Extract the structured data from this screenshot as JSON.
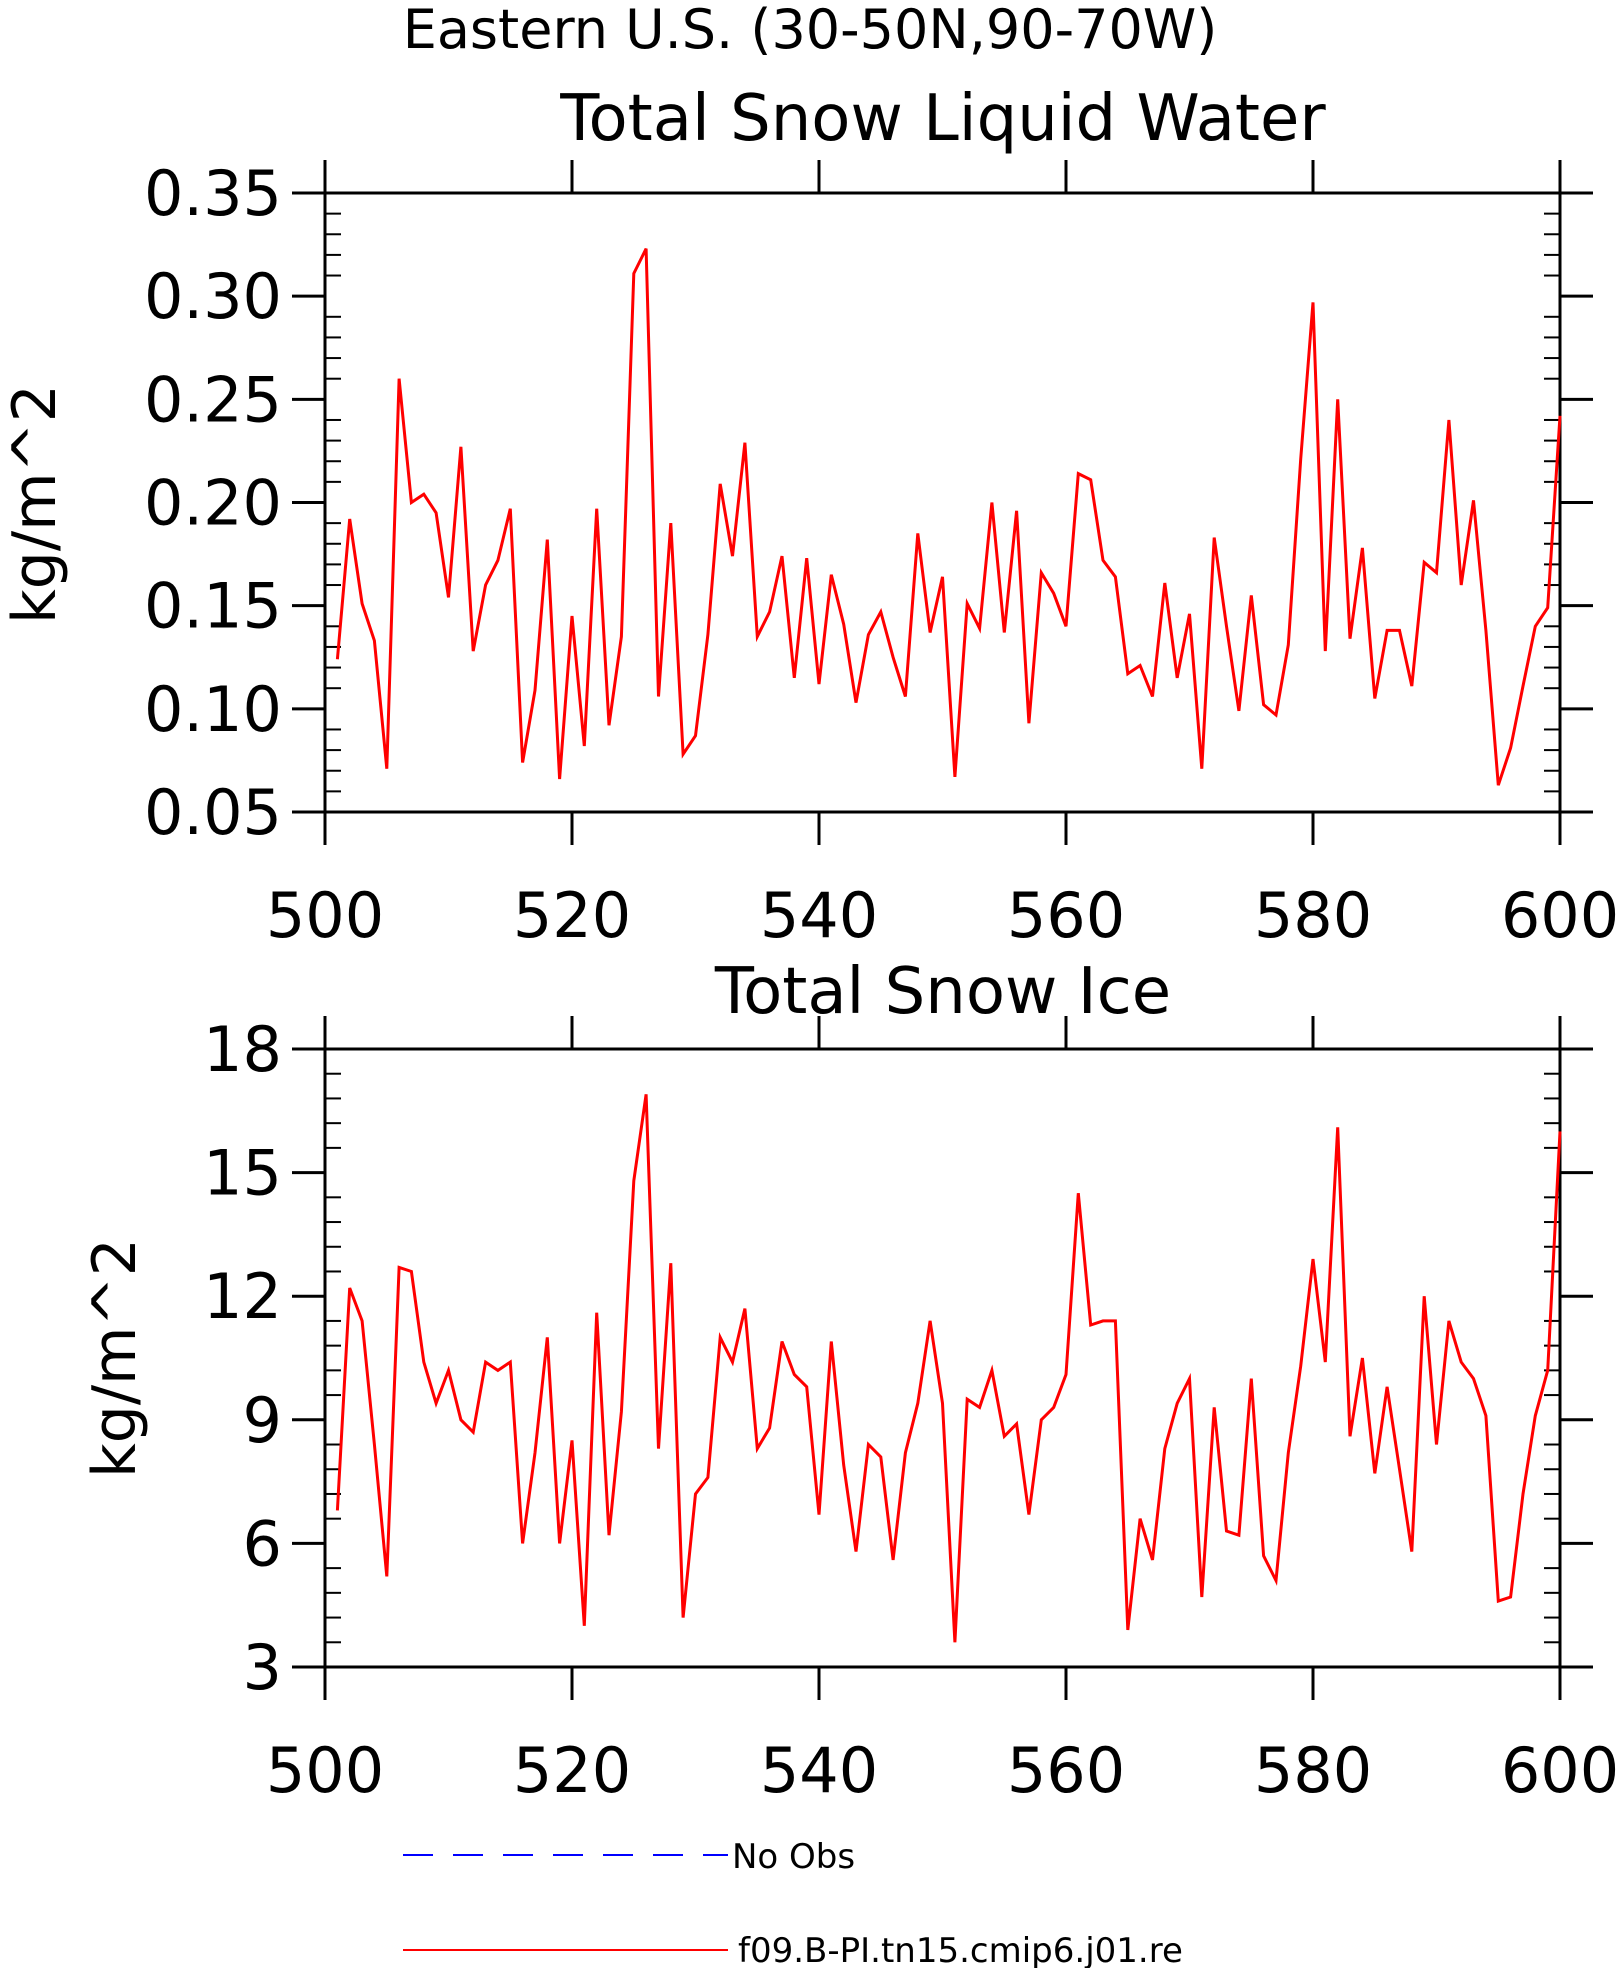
{
  "figure_title": "Eastern U.S. (30-50N,90-70W)",
  "legend": [
    {
      "label": "No Obs",
      "color": "#0000ff",
      "style": "dashed"
    },
    {
      "label": "f09.B-PI.tn15.cmip6.j01.re",
      "color": "#ff0000",
      "style": "solid"
    }
  ],
  "chart_data": [
    {
      "type": "line",
      "title": "Total Snow Liquid Water",
      "xlabel": "",
      "ylabel": "kg/m^2",
      "xlim": [
        500,
        600
      ],
      "ylim": [
        0.05,
        0.35
      ],
      "xticks": [
        500,
        520,
        540,
        560,
        580,
        600
      ],
      "xtick_labels": [
        "500",
        "520",
        "540",
        "560",
        "580",
        "600"
      ],
      "yticks": [
        0.05,
        0.1,
        0.15,
        0.2,
        0.25,
        0.3,
        0.35
      ],
      "ytick_labels": [
        "0.05",
        "0.10",
        "0.15",
        "0.20",
        "0.25",
        "0.30",
        "0.35"
      ],
      "grid": false,
      "series": [
        {
          "name": "f09.B-PI.tn15.cmip6.j01.re",
          "color": "#ff0000",
          "x": [
            501,
            502,
            503,
            504,
            505,
            506,
            507,
            508,
            509,
            510,
            511,
            512,
            513,
            514,
            515,
            516,
            517,
            518,
            519,
            520,
            521,
            522,
            523,
            524,
            525,
            526,
            527,
            528,
            529,
            530,
            531,
            532,
            533,
            534,
            535,
            536,
            537,
            538,
            539,
            540,
            541,
            542,
            543,
            544,
            545,
            546,
            547,
            548,
            549,
            550,
            551,
            552,
            553,
            554,
            555,
            556,
            557,
            558,
            559,
            560,
            561,
            562,
            563,
            564,
            565,
            566,
            567,
            568,
            569,
            570,
            571,
            572,
            573,
            574,
            575,
            576,
            577,
            578,
            579,
            580,
            581,
            582,
            583,
            584,
            585,
            586,
            587,
            588,
            589,
            590,
            591,
            592,
            593,
            594,
            595,
            596,
            597,
            598,
            599,
            600
          ],
          "values": [
            0.124,
            0.192,
            0.151,
            0.133,
            0.071,
            0.26,
            0.2,
            0.204,
            0.195,
            0.154,
            0.227,
            0.128,
            0.16,
            0.172,
            0.197,
            0.074,
            0.109,
            0.182,
            0.066,
            0.145,
            0.082,
            0.197,
            0.092,
            0.135,
            0.311,
            0.323,
            0.106,
            0.19,
            0.078,
            0.087,
            0.136,
            0.209,
            0.174,
            0.229,
            0.135,
            0.147,
            0.174,
            0.115,
            0.173,
            0.112,
            0.165,
            0.141,
            0.103,
            0.136,
            0.147,
            0.125,
            0.106,
            0.185,
            0.137,
            0.164,
            0.067,
            0.151,
            0.139,
            0.2,
            0.137,
            0.196,
            0.093,
            0.166,
            0.156,
            0.14,
            0.214,
            0.211,
            0.172,
            0.164,
            0.117,
            0.121,
            0.106,
            0.161,
            0.115,
            0.146,
            0.071,
            0.183,
            0.14,
            0.099,
            0.155,
            0.102,
            0.097,
            0.131,
            0.221,
            0.297,
            0.128,
            0.25,
            0.134,
            0.178,
            0.105,
            0.138,
            0.138,
            0.111,
            0.171,
            0.166,
            0.24,
            0.16,
            0.201,
            0.138,
            0.063,
            0.081,
            0.111,
            0.14,
            0.149,
            0.242
          ]
        }
      ]
    },
    {
      "type": "line",
      "title": "Total Snow Ice",
      "xlabel": "",
      "ylabel": "kg/m^2",
      "xlim": [
        500,
        600
      ],
      "ylim": [
        3,
        18
      ],
      "xticks": [
        500,
        520,
        540,
        560,
        580,
        600
      ],
      "xtick_labels": [
        "500",
        "520",
        "540",
        "560",
        "580",
        "600"
      ],
      "yticks": [
        3,
        6,
        9,
        12,
        15,
        18
      ],
      "ytick_labels": [
        "3",
        "6",
        "9",
        "12",
        "15",
        "18"
      ],
      "grid": false,
      "series": [
        {
          "name": "f09.B-PI.tn15.cmip6.j01.re",
          "color": "#ff0000",
          "x": [
            501,
            502,
            503,
            504,
            505,
            506,
            507,
            508,
            509,
            510,
            511,
            512,
            513,
            514,
            515,
            516,
            517,
            518,
            519,
            520,
            521,
            522,
            523,
            524,
            525,
            526,
            527,
            528,
            529,
            530,
            531,
            532,
            533,
            534,
            535,
            536,
            537,
            538,
            539,
            540,
            541,
            542,
            543,
            544,
            545,
            546,
            547,
            548,
            549,
            550,
            551,
            552,
            553,
            554,
            555,
            556,
            557,
            558,
            559,
            560,
            561,
            562,
            563,
            564,
            565,
            566,
            567,
            568,
            569,
            570,
            571,
            572,
            573,
            574,
            575,
            576,
            577,
            578,
            579,
            580,
            581,
            582,
            583,
            584,
            585,
            586,
            587,
            588,
            589,
            590,
            591,
            592,
            593,
            594,
            595,
            596,
            597,
            598,
            599,
            600
          ],
          "values": [
            6.8,
            12.2,
            11.4,
            8.4,
            5.2,
            12.7,
            12.6,
            10.4,
            9.4,
            10.2,
            9.0,
            8.7,
            10.4,
            10.2,
            10.4,
            6.0,
            8.2,
            11.0,
            6.0,
            8.5,
            4.0,
            11.6,
            6.2,
            9.2,
            14.8,
            16.9,
            8.3,
            12.8,
            4.2,
            7.2,
            7.6,
            11.0,
            10.4,
            11.7,
            8.3,
            8.8,
            10.9,
            10.1,
            9.8,
            6.7,
            10.9,
            7.9,
            5.8,
            8.4,
            8.1,
            5.6,
            8.2,
            9.4,
            11.4,
            9.4,
            3.6,
            9.5,
            9.3,
            10.2,
            8.6,
            8.9,
            6.7,
            9.0,
            9.3,
            10.1,
            14.5,
            11.3,
            11.4,
            11.4,
            3.9,
            6.6,
            5.6,
            8.3,
            9.4,
            10.0,
            4.7,
            9.3,
            6.3,
            6.2,
            10.0,
            5.7,
            5.1,
            8.2,
            10.3,
            12.9,
            10.4,
            16.1,
            8.6,
            10.5,
            7.7,
            9.8,
            7.8,
            5.8,
            12.0,
            8.4,
            11.4,
            10.4,
            10.0,
            9.1,
            4.6,
            4.7,
            7.2,
            9.1,
            10.2,
            16.0
          ]
        }
      ]
    }
  ]
}
